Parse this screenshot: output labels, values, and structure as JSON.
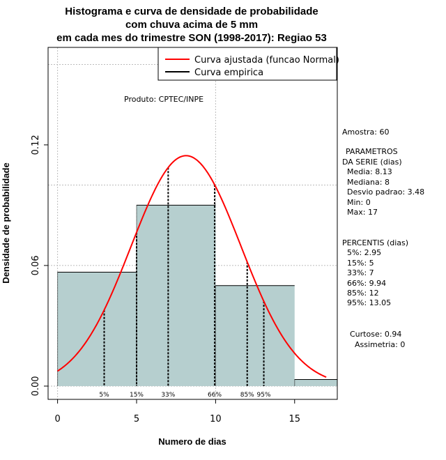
{
  "chart_data": {
    "type": "histogram",
    "title_lines": [
      "Histograma e curva de densidade de probabilidade",
      "com chuva acima de 5 mm",
      "em cada mes do trimestre SON (1998-2017): Regiao 53"
    ],
    "xlabel": "Numero de dias",
    "ylabel": "Densidade de probabilidade",
    "xlim": [
      -0.6,
      17.7
    ],
    "ylim": [
      -0.0066,
      0.1685
    ],
    "xticks": [
      0,
      5,
      10,
      15
    ],
    "xtick_labels": [
      "0",
      "5",
      "10",
      "15"
    ],
    "yticks": [
      0.0,
      0.06,
      0.12
    ],
    "ytick_labels": [
      "0.00",
      "0.06",
      "0.12"
    ],
    "bins": [
      {
        "x0": 0,
        "x1": 5,
        "density": 0.0567
      },
      {
        "x0": 5,
        "x1": 10,
        "density": 0.09
      },
      {
        "x0": 10,
        "x1": 15,
        "density": 0.05
      },
      {
        "x0": 15,
        "x1": 17.7,
        "density": 0.0033
      }
    ],
    "normal_curve": {
      "mean": 8.13,
      "sd": 3.48,
      "x_from": 0,
      "x_to": 17
    },
    "percentile_lines": [
      {
        "x": 2.95,
        "label": "5%"
      },
      {
        "x": 5,
        "label": "15%"
      },
      {
        "x": 7,
        "label": "33%"
      },
      {
        "x": 9.94,
        "label": "66%"
      },
      {
        "x": 12,
        "label": "85%"
      },
      {
        "x": 13.05,
        "label": "95%"
      }
    ],
    "grid_h": [
      0.0,
      0.06,
      0.1,
      0.16
    ],
    "grid_v": [
      0,
      10
    ],
    "colors": {
      "bar_fill": "#b6cfcf",
      "curve": "#ff0000",
      "empirical": "#000000",
      "grid": "#bbbbbb"
    },
    "legend": {
      "position": "top-right",
      "entries": [
        {
          "label": "Curva ajustada (funcao Normal)",
          "color": "#ff0000"
        },
        {
          "label": "Curva empirica",
          "color": "#000000"
        }
      ]
    },
    "annotation": "Produto: CPTEC/INPE"
  },
  "stats_panel": {
    "amostra": "Amostra: 60",
    "parametros_header": "PARAMETROS",
    "parametros_sub": "DA SERIE (dias)",
    "params": [
      "Media: 8.13",
      "Mediana: 8",
      "Desvio padrao: 3.48",
      "Min: 0",
      "Max: 17"
    ],
    "percentis_header": "PERCENTIS (dias)",
    "percentis": [
      "5%: 2.95",
      "15%: 5",
      "33%: 7",
      "66%: 9.94",
      "85%: 12",
      "95%: 13.05"
    ],
    "curtose": "Curtose: 0.94",
    "assimetria": "Assimetria: 0"
  }
}
